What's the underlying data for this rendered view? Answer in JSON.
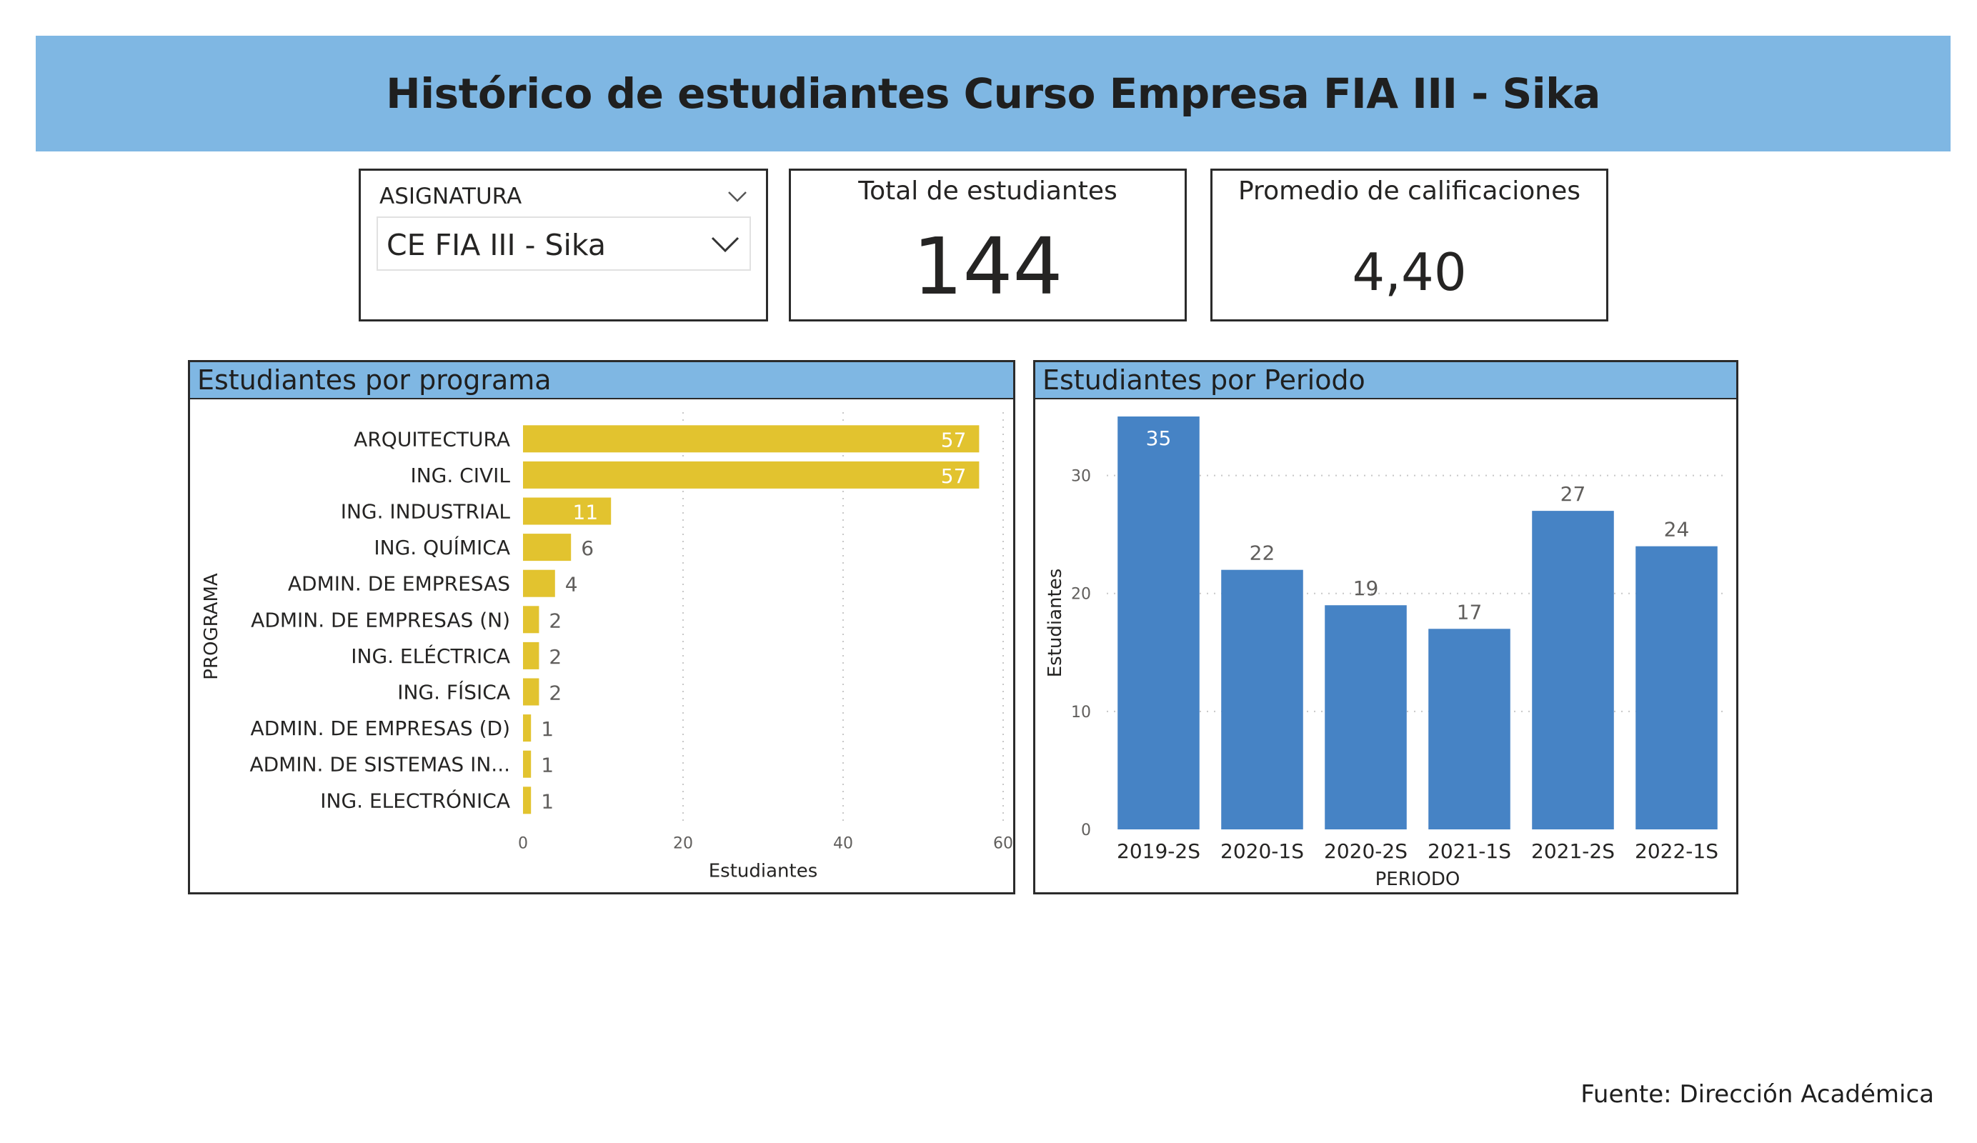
{
  "header": {
    "title": "Histórico de estudiantes Curso Empresa FIA III - Sika"
  },
  "slicer": {
    "label": "ASIGNATURA",
    "value": "CE FIA III - Sika",
    "icon": "chevron-down-icon"
  },
  "kpis": {
    "total": {
      "title": "Total de estudiantes",
      "value": "144"
    },
    "avg": {
      "title": "Promedio de calificaciones",
      "value": "4,40"
    }
  },
  "footer": {
    "source": "Fuente: Dirección Académica"
  },
  "colors": {
    "header": "#7fb7e3",
    "bar_programa": "#e2c32f",
    "bar_periodo": "#4683c5"
  },
  "chart_data": [
    {
      "type": "bar",
      "orientation": "horizontal",
      "title": "Estudiantes por programa",
      "categories": [
        "ARQUITECTURA",
        "ING. CIVIL",
        "ING. INDUSTRIAL",
        "ING. QUÍMICA",
        "ADMIN. DE EMPRESAS",
        "ADMIN. DE EMPRESAS (N)",
        "ING. ELÉCTRICA",
        "ING. FÍSICA",
        "ADMIN. DE EMPRESAS (D)",
        "ADMIN. DE SISTEMAS IN...",
        "ING. ELECTRÓNICA"
      ],
      "values": [
        57,
        57,
        11,
        6,
        4,
        2,
        2,
        2,
        1,
        1,
        1
      ],
      "xlabel": "Estudiantes",
      "ylabel": "PROGRAMA",
      "xlim": [
        0,
        60
      ],
      "ticks": [
        0,
        20,
        40,
        60
      ],
      "grid": true,
      "data_labels": true
    },
    {
      "type": "bar",
      "orientation": "vertical",
      "title": "Estudiantes por Periodo",
      "categories": [
        "2019-2S",
        "2020-1S",
        "2020-2S",
        "2021-1S",
        "2021-2S",
        "2022-1S"
      ],
      "values": [
        35,
        22,
        19,
        17,
        27,
        24
      ],
      "xlabel": "PERIODO",
      "ylabel": "Estudiantes",
      "ylim": [
        0,
        35
      ],
      "ticks": [
        0,
        10,
        20,
        30
      ],
      "grid": true,
      "data_labels": true
    }
  ]
}
